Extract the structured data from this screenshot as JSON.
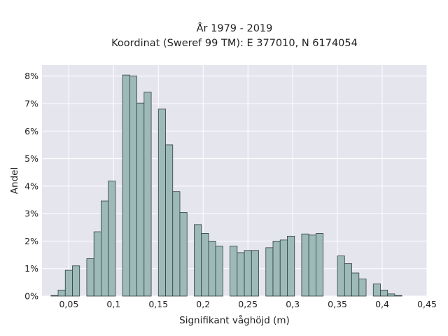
{
  "chart_data": {
    "type": "bar",
    "title": "År 1979 - 2019",
    "subtitle": "Koordinat (Sweref 99 TM): E 377010, N 6174054",
    "xlabel": "Signifikant våghöjd (m)",
    "ylabel": "Andel",
    "xlim": [
      0.02,
      0.45
    ],
    "ylim": [
      0,
      0.084
    ],
    "grid": true,
    "bin_width": 0.008,
    "x_ticks": [
      0.05,
      0.1,
      0.15,
      0.2,
      0.25,
      0.3,
      0.35,
      0.4,
      0.45
    ],
    "x_tick_labels": [
      "0,05",
      "0,1",
      "0,15",
      "0,2",
      "0,25",
      "0,3",
      "0,35",
      "0,4",
      "0,45"
    ],
    "y_ticks": [
      0,
      0.01,
      0.02,
      0.03,
      0.04,
      0.05,
      0.06,
      0.07,
      0.08
    ],
    "y_tick_labels": [
      "0%",
      "1%",
      "2%",
      "3%",
      "4%",
      "5%",
      "6%",
      "7%",
      "8%"
    ],
    "bin_starts": [
      0.03,
      0.038,
      0.046,
      0.054,
      0.07,
      0.078,
      0.086,
      0.094,
      0.11,
      0.118,
      0.126,
      0.134,
      0.15,
      0.158,
      0.166,
      0.174,
      0.19,
      0.198,
      0.206,
      0.214,
      0.23,
      0.238,
      0.246,
      0.254,
      0.27,
      0.278,
      0.286,
      0.294,
      0.31,
      0.318,
      0.326,
      0.35,
      0.358,
      0.366,
      0.374,
      0.39,
      0.398,
      0.406,
      0.414
    ],
    "values": [
      0.0002,
      0.0022,
      0.0094,
      0.011,
      0.0136,
      0.0234,
      0.0346,
      0.0418,
      0.0804,
      0.08,
      0.0702,
      0.0742,
      0.068,
      0.055,
      0.038,
      0.0304,
      0.026,
      0.0228,
      0.02,
      0.0182,
      0.0182,
      0.0158,
      0.0166,
      0.0166,
      0.0176,
      0.02,
      0.0204,
      0.0218,
      0.0226,
      0.0222,
      0.0228,
      0.0146,
      0.0118,
      0.0084,
      0.0062,
      0.0044,
      0.0022,
      0.0008,
      0.0002
    ]
  }
}
